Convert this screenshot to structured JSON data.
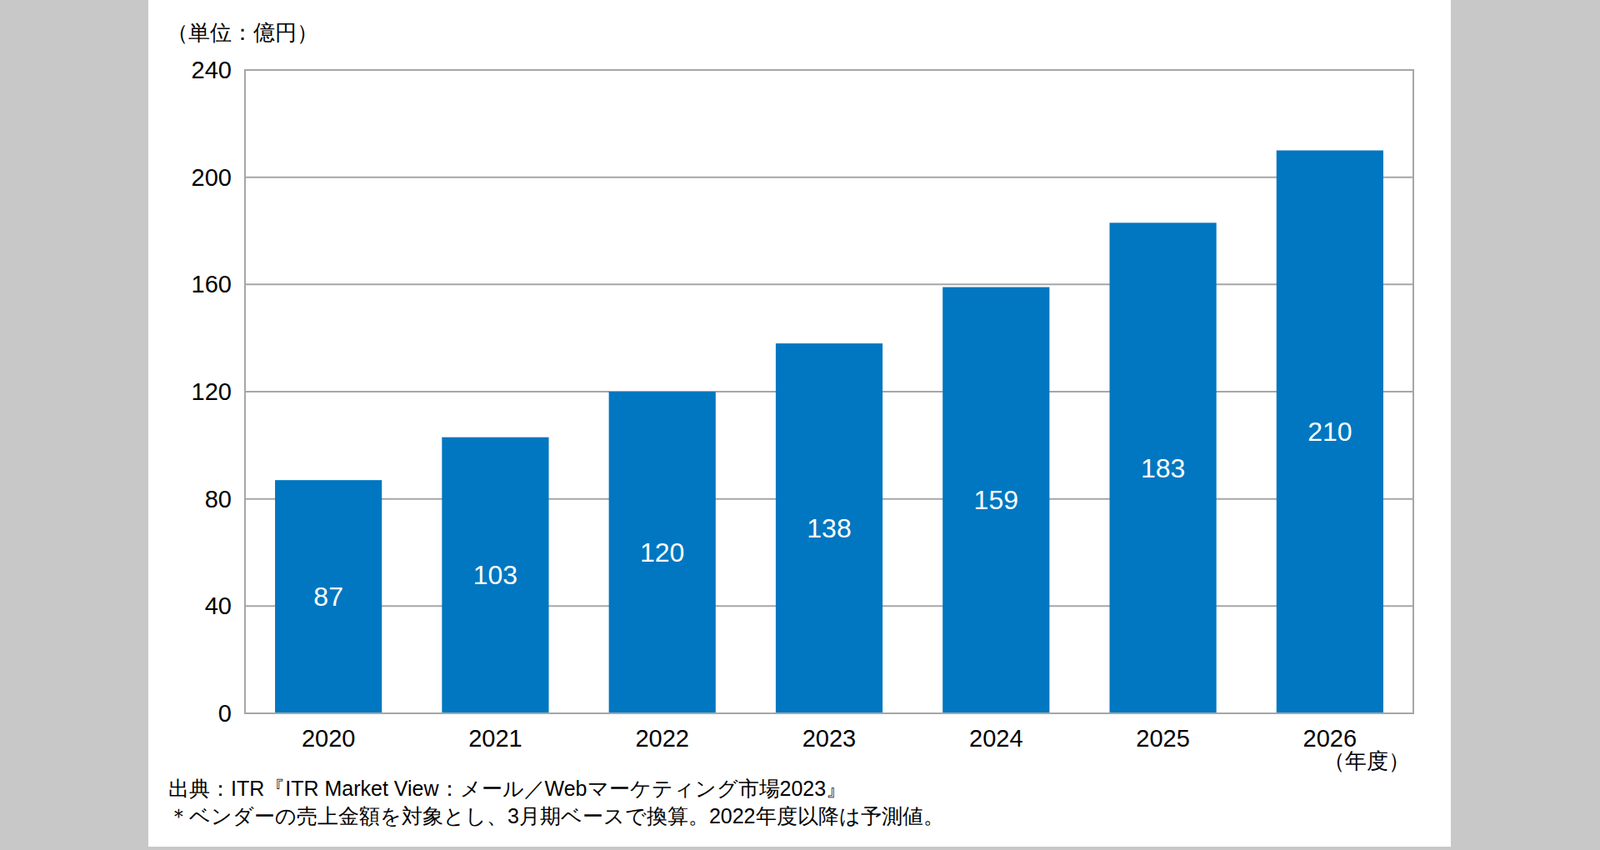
{
  "chart_data": {
    "type": "bar",
    "ylabel": "（単位：億円）",
    "xlabel": "（年度）",
    "annotations": [
      "出典：ITR『ITR Market View：メール／Webマーケティング市場2023』",
      "＊ベンダーの売上金額を対象とし、3月期ベースで換算。2022年度以降は予測値。"
    ],
    "categories": [
      "2020",
      "2021",
      "2022",
      "2023",
      "2024",
      "2025",
      "2026"
    ],
    "values": [
      87,
      103,
      120,
      138,
      159,
      183,
      210
    ],
    "color": "#0077c0",
    "ylim": [
      0,
      240
    ],
    "yticks": [
      0,
      40,
      80,
      120,
      160,
      200,
      240
    ],
    "grid": true,
    "data_labels": true
  }
}
